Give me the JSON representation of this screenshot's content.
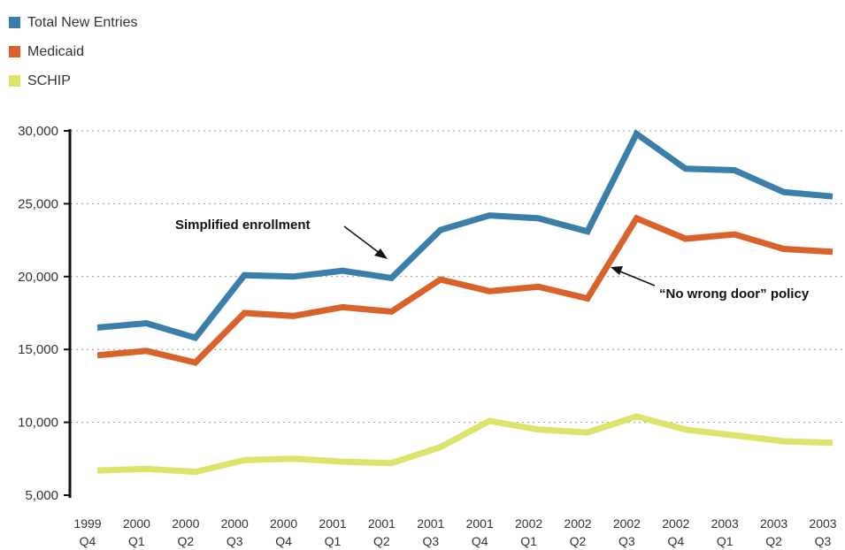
{
  "chart_data": {
    "type": "line",
    "x_labels": [
      [
        "1999",
        "Q4"
      ],
      [
        "2000",
        "Q1"
      ],
      [
        "2000",
        "Q2"
      ],
      [
        "2000",
        "Q3"
      ],
      [
        "2000",
        "Q4"
      ],
      [
        "2001",
        "Q1"
      ],
      [
        "2001",
        "Q2"
      ],
      [
        "2001",
        "Q3"
      ],
      [
        "2001",
        "Q4"
      ],
      [
        "2002",
        "Q1"
      ],
      [
        "2002",
        "Q2"
      ],
      [
        "2002",
        "Q3"
      ],
      [
        "2002",
        "Q4"
      ],
      [
        "2003",
        "Q1"
      ],
      [
        "2003",
        "Q2"
      ],
      [
        "2003",
        "Q3"
      ]
    ],
    "ylim": [
      5000,
      30000
    ],
    "yticks": [
      5000,
      10000,
      15000,
      20000,
      25000,
      30000
    ],
    "ytick_labels": [
      "5,000",
      "10,000",
      "15,000",
      "20,000",
      "25,000",
      "30,000"
    ],
    "grid": "horizontal dotted",
    "legend_position": "top-left",
    "series": [
      {
        "name": "Total New Entries",
        "color": "#3a7eaa",
        "values": [
          16500,
          16800,
          15800,
          20100,
          20000,
          20400,
          19900,
          23200,
          24200,
          24000,
          23100,
          29800,
          27400,
          27300,
          25800,
          25500
        ]
      },
      {
        "name": "Medicaid",
        "color": "#d9622b",
        "values": [
          14600,
          14900,
          14100,
          17500,
          17300,
          17900,
          17600,
          19800,
          19000,
          19300,
          18500,
          24000,
          22600,
          22900,
          21900,
          21700
        ]
      },
      {
        "name": "SCHIP",
        "color": "#dde46a",
        "values": [
          6700,
          6800,
          6600,
          7400,
          7500,
          7300,
          7200,
          8300,
          10100,
          9500,
          9300,
          10400,
          9500,
          9100,
          8700,
          8600
        ]
      }
    ],
    "annotations": [
      {
        "text": "Simplified enrollment",
        "x_index": 6,
        "value": 19900
      },
      {
        "text": "“No wrong door” policy",
        "x_index": 10.5,
        "value": 21500
      }
    ]
  }
}
